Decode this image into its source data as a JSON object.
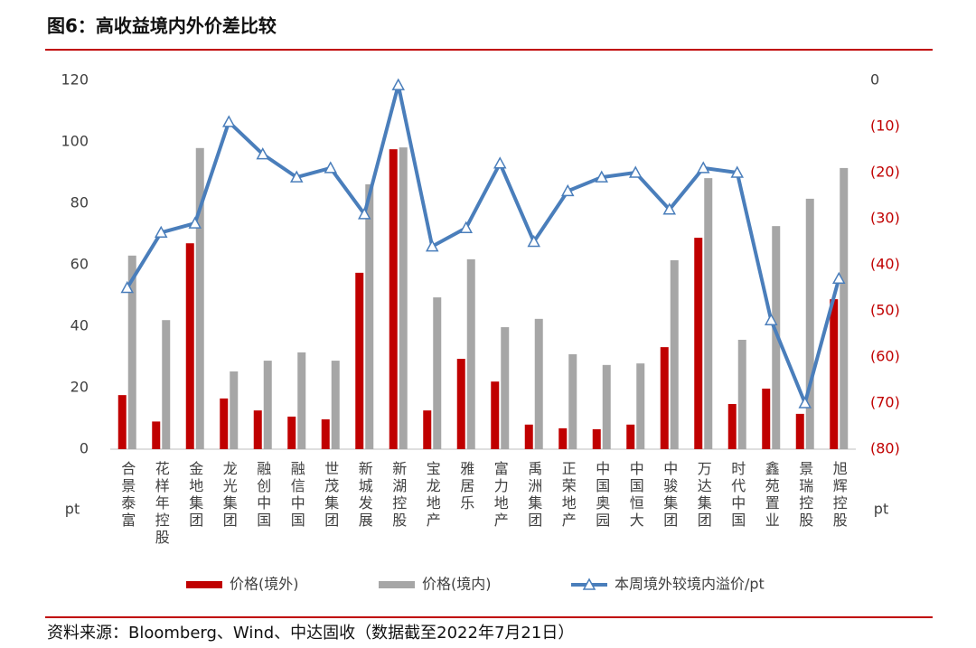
{
  "chart_data": {
    "type": "combo",
    "title": "图6：高收益境内外价差比较",
    "source": "资料来源：Bloomberg、Wind、中达固收（数据截至2022年7月21日）",
    "y_label": "pt",
    "y2_label": "pt",
    "categories": [
      "合景泰富",
      "花样年控股",
      "金地集团",
      "龙光集团",
      "融创中国",
      "融信中国",
      "世茂集团",
      "新城发展",
      "新湖控股",
      "宝龙地产",
      "雅居乐",
      "富力地产",
      "禹洲集团",
      "正荣地产",
      "中国奥园",
      "中国恒大",
      "中骏集团",
      "万达集团",
      "时代中国",
      "鑫苑置业",
      "景瑞控股",
      "旭辉控股"
    ],
    "series": [
      {
        "name": "价格(境外)",
        "type": "bar",
        "color": "#c00000",
        "values": [
          17.6,
          9,
          67,
          16.5,
          12.6,
          10.6,
          9.7,
          57.4,
          97.6,
          12.6,
          29.4,
          22,
          8,
          6.8,
          6.5,
          8,
          33.2,
          68.8,
          14.7,
          19.7,
          11.5,
          48.8
        ]
      },
      {
        "name": "价格(境内)",
        "type": "bar",
        "color": "#a6a6a6",
        "values": [
          63,
          42,
          98,
          25.3,
          28.8,
          31.5,
          28.8,
          86.2,
          98.2,
          49.4,
          61.8,
          39.7,
          42.4,
          30.9,
          27.4,
          27.9,
          61.5,
          88.2,
          35.6,
          72.6,
          81.5,
          91.5
        ]
      },
      {
        "name": "本周境外较境内溢价/pt",
        "type": "line",
        "axis": "y2",
        "color": "#4a7ebb",
        "values": [
          -45,
          -33,
          -31,
          -9,
          -16,
          -21,
          -19,
          -29,
          -1,
          -36,
          -32,
          -18,
          -35,
          -24,
          -21,
          -20,
          -28,
          -19,
          -20,
          -52,
          -70,
          -43
        ]
      }
    ],
    "ylim": [
      0,
      120
    ],
    "yticks": [
      0,
      20,
      40,
      60,
      80,
      100,
      120
    ],
    "y2lim": [
      -80,
      0
    ],
    "y2ticks": [
      {
        "value": -80,
        "label": "(80)"
      },
      {
        "value": -70,
        "label": "(70)"
      },
      {
        "value": -60,
        "label": "(60)"
      },
      {
        "value": -50,
        "label": "(50)"
      },
      {
        "value": -40,
        "label": "(40)"
      },
      {
        "value": -30,
        "label": "(30)"
      },
      {
        "value": -20,
        "label": "(20)"
      },
      {
        "value": -10,
        "label": "(10)"
      },
      0
    ],
    "negative_tick_color": "#c00000",
    "grid": false
  }
}
